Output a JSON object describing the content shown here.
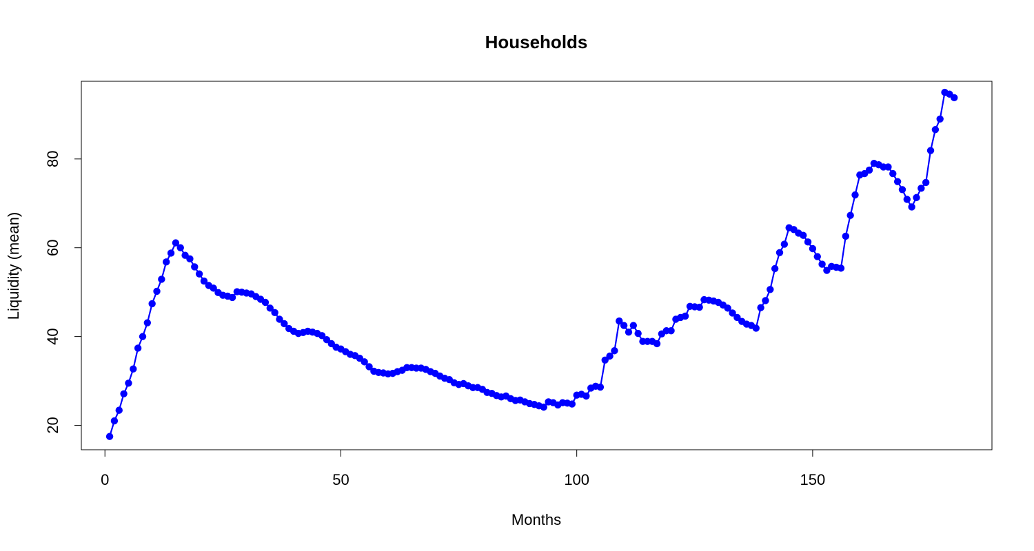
{
  "chart_data": {
    "type": "line",
    "title": "Households",
    "xlabel": "Months",
    "ylabel": "Liquidity (mean)",
    "xlim": [
      -5,
      188
    ],
    "ylim": [
      14.5,
      97.5
    ],
    "x_ticks": [
      0,
      50,
      100,
      150
    ],
    "y_ticks": [
      20,
      40,
      60,
      80
    ],
    "grid": false,
    "color": "#0000ff",
    "marker": "filled-circle",
    "series": [
      {
        "x": [
          1,
          2,
          3,
          4,
          5,
          6,
          7,
          8,
          9,
          10,
          11,
          12,
          13,
          14,
          15,
          16,
          17,
          18,
          19,
          20,
          21,
          22,
          23,
          24,
          25,
          26,
          27,
          28,
          29,
          30,
          31,
          32,
          33,
          34,
          35,
          36,
          37,
          38,
          39,
          40,
          41,
          42,
          43,
          44,
          45,
          46,
          47,
          48,
          49,
          50,
          51,
          52,
          53,
          54,
          55,
          56,
          57,
          58,
          59,
          60,
          61,
          62,
          63,
          64,
          65,
          66,
          67,
          68,
          69,
          70,
          71,
          72,
          73,
          74,
          75,
          76,
          77,
          78,
          79,
          80,
          81,
          82,
          83,
          84,
          85,
          86,
          87,
          88,
          89,
          90,
          91,
          92,
          93,
          94,
          95,
          96,
          97,
          98,
          99,
          100,
          101,
          102,
          103,
          104,
          105,
          106,
          107,
          108,
          109,
          110,
          111,
          112,
          113,
          114,
          115,
          116,
          117,
          118,
          119,
          120,
          121,
          122,
          123,
          124,
          125,
          126,
          127,
          128,
          129,
          130,
          131,
          132,
          133,
          134,
          135,
          136,
          137,
          138,
          139,
          140,
          141,
          142,
          143,
          144,
          145,
          146,
          147,
          148,
          149,
          150,
          151,
          152,
          153,
          154,
          155,
          156,
          157,
          158,
          159,
          160,
          161,
          162,
          163,
          164,
          165,
          166,
          167,
          168,
          169,
          170,
          171,
          172,
          173,
          174,
          175,
          176,
          177,
          178,
          179,
          180
        ],
        "values": [
          17.5,
          21.0,
          23.4,
          27.1,
          29.5,
          32.7,
          37.4,
          40.0,
          43.1,
          47.4,
          50.2,
          52.9,
          56.8,
          58.8,
          61.1,
          60.0,
          58.3,
          57.5,
          55.7,
          54.1,
          52.5,
          51.5,
          50.9,
          49.9,
          49.3,
          49.1,
          48.8,
          50.1,
          50.0,
          49.8,
          49.6,
          49.0,
          48.4,
          47.7,
          46.4,
          45.4,
          43.9,
          42.9,
          41.8,
          41.2,
          40.7,
          40.9,
          41.2,
          41.0,
          40.7,
          40.2,
          39.3,
          38.4,
          37.6,
          37.2,
          36.6,
          36.0,
          35.7,
          35.1,
          34.3,
          33.2,
          32.2,
          31.9,
          31.8,
          31.6,
          31.7,
          32.1,
          32.4,
          33.0,
          33.0,
          32.9,
          32.9,
          32.6,
          32.1,
          31.7,
          31.1,
          30.6,
          30.3,
          29.6,
          29.2,
          29.4,
          28.9,
          28.5,
          28.5,
          28.1,
          27.4,
          27.2,
          26.7,
          26.4,
          26.6,
          26.0,
          25.6,
          25.7,
          25.3,
          24.9,
          24.7,
          24.4,
          24.1,
          25.3,
          25.1,
          24.6,
          25.1,
          25.0,
          24.8,
          26.8,
          27.0,
          26.6,
          28.4,
          28.8,
          28.6,
          34.7,
          35.6,
          36.8,
          43.5,
          42.5,
          41.0,
          42.5,
          40.7,
          38.9,
          38.9,
          38.9,
          38.4,
          40.6,
          41.3,
          41.3,
          43.9,
          44.3,
          44.6,
          46.8,
          46.7,
          46.6,
          48.3,
          48.2,
          48.0,
          47.7,
          47.1,
          46.4,
          45.3,
          44.3,
          43.4,
          42.8,
          42.5,
          41.9,
          46.5,
          48.1,
          50.6,
          55.3,
          58.9,
          60.8,
          64.5,
          64.1,
          63.3,
          62.8,
          61.3,
          59.8,
          58.0,
          56.3,
          54.9,
          55.8,
          55.6,
          55.4,
          62.6,
          67.3,
          71.9,
          76.4,
          76.7,
          77.5,
          79.0,
          78.7,
          78.2,
          78.2,
          76.7,
          74.9,
          73.1,
          70.9,
          69.2,
          71.3,
          73.4,
          74.7,
          81.9,
          86.6,
          89.0,
          95.0,
          94.6,
          93.8
        ]
      }
    ]
  }
}
